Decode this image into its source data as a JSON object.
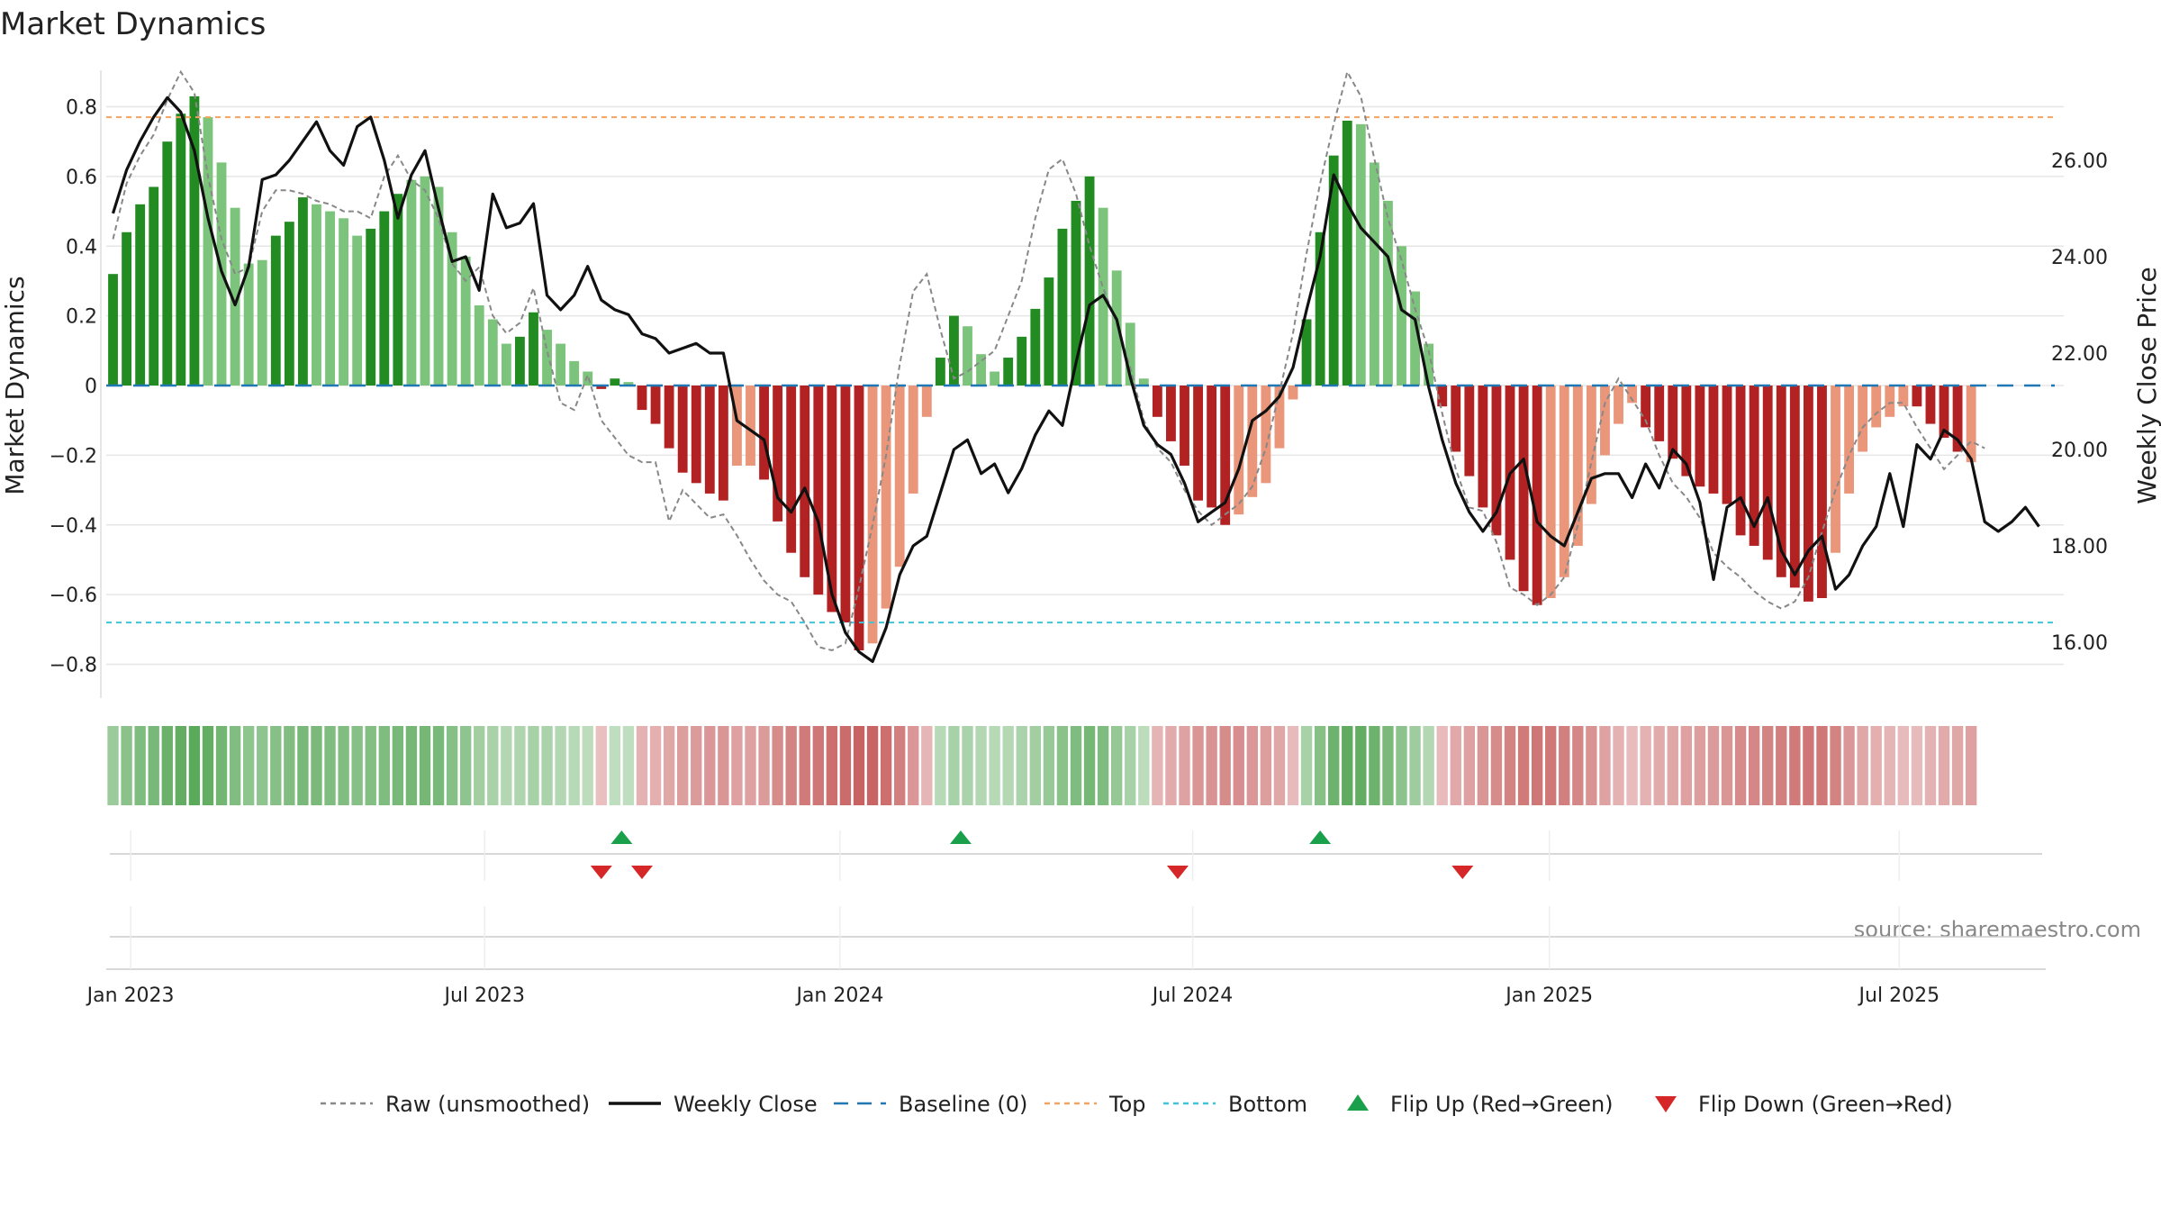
{
  "chart_data": {
    "type": "bar",
    "title": "Market Dynamics",
    "ylabel": "Market Dynamics",
    "ylabel_right": "Weekly Close Price",
    "source": "source: sharemaestro.com",
    "ylim": [
      -0.88,
      0.9
    ],
    "ylim_right": [
      15.0,
      27.8
    ],
    "yticks": [
      {
        "v": 0.8,
        "label": "0.8"
      },
      {
        "v": 0.6,
        "label": "0.6"
      },
      {
        "v": 0.4,
        "label": "0.4"
      },
      {
        "v": 0.2,
        "label": "0.2"
      },
      {
        "v": 0,
        "label": "0"
      },
      {
        "v": -0.2,
        "label": "−0.2"
      },
      {
        "v": -0.4,
        "label": "−0.4"
      },
      {
        "v": -0.6,
        "label": "−0.6"
      },
      {
        "v": -0.8,
        "label": "−0.8"
      }
    ],
    "yticks_right": [
      {
        "v": 26,
        "label": "26.00"
      },
      {
        "v": 24,
        "label": "24.00"
      },
      {
        "v": 22,
        "label": "22.00"
      },
      {
        "v": 20,
        "label": "20.00"
      },
      {
        "v": 18,
        "label": "18.00"
      },
      {
        "v": 16,
        "label": "16.00"
      }
    ],
    "xticks": [
      {
        "week": 1.3,
        "label": "Jan 2023"
      },
      {
        "week": 27.4,
        "label": "Jul 2023"
      },
      {
        "week": 53.6,
        "label": "Jan 2024"
      },
      {
        "week": 79.6,
        "label": "Jul 2024"
      },
      {
        "week": 105.9,
        "label": "Jan 2025"
      },
      {
        "week": 131.7,
        "label": "Jul 2025"
      }
    ],
    "top_level": 0.77,
    "bottom_level": -0.68,
    "baseline": 0,
    "colors": {
      "strong_up": "#228B22",
      "weak_up": "#7CC47C",
      "strong_down": "#B22222",
      "weak_down": "#E9967A",
      "raw": "#888888",
      "close": "#111111",
      "baseline": "#1f77b4",
      "top": "#F4A460",
      "bottom": "#40C4D8",
      "flip_up": "#1AA04A",
      "flip_down": "#D62728"
    },
    "weeks": [
      0,
      1,
      2,
      3,
      4,
      5,
      6,
      7,
      8,
      9,
      10,
      11,
      12,
      13,
      14,
      15,
      16,
      17,
      18,
      19,
      20,
      21,
      22,
      23,
      24,
      25,
      26,
      27,
      28,
      29,
      30,
      31,
      32,
      33,
      34,
      35,
      36,
      37,
      38,
      39,
      40,
      41,
      42,
      43,
      44,
      45,
      46,
      47,
      48,
      49,
      50,
      51,
      52,
      53,
      54,
      55,
      56,
      57,
      58,
      59,
      60,
      61,
      62,
      63,
      64,
      65,
      66,
      67,
      68,
      69,
      70,
      71,
      72,
      73,
      74,
      75,
      76,
      77,
      78,
      79,
      80,
      81,
      82,
      83,
      84,
      85,
      86,
      87,
      88,
      89,
      90,
      91,
      92,
      93,
      94,
      95,
      96,
      97,
      98,
      99,
      100,
      101,
      102,
      103,
      104,
      105,
      106,
      107,
      108,
      109,
      110,
      111,
      112,
      113,
      114,
      115,
      116,
      117,
      118,
      119,
      120,
      121,
      122,
      123,
      124,
      125,
      126,
      127,
      128,
      129,
      130,
      131,
      132,
      133,
      134,
      135,
      136,
      137,
      138,
      139,
      140,
      141,
      142
    ],
    "series": [
      {
        "name": "Market Dynamics",
        "values": [
          0.32,
          0.44,
          0.52,
          0.57,
          0.7,
          0.78,
          0.83,
          0.77,
          0.64,
          0.51,
          0.35,
          0.36,
          0.43,
          0.47,
          0.54,
          0.52,
          0.5,
          0.48,
          0.43,
          0.45,
          0.5,
          0.55,
          0.59,
          0.6,
          0.57,
          0.44,
          0.37,
          0.23,
          0.19,
          0.12,
          0.14,
          0.21,
          0.16,
          0.12,
          0.07,
          0.04,
          -0.01,
          0.02,
          0.01,
          -0.07,
          -0.11,
          -0.18,
          -0.25,
          -0.28,
          -0.31,
          -0.33,
          -0.23,
          -0.23,
          -0.27,
          -0.39,
          -0.48,
          -0.55,
          -0.6,
          -0.65,
          -0.68,
          -0.76,
          -0.74,
          -0.64,
          -0.52,
          -0.31,
          -0.09,
          0.08,
          0.2,
          0.17,
          0.09,
          0.04,
          0.08,
          0.14,
          0.22,
          0.31,
          0.45,
          0.53,
          0.6,
          0.51,
          0.33,
          0.18,
          0.02,
          -0.09,
          -0.16,
          -0.23,
          -0.33,
          -0.35,
          -0.4,
          -0.37,
          -0.32,
          -0.28,
          -0.18,
          -0.04,
          0.19,
          0.44,
          0.66,
          0.76,
          0.75,
          0.64,
          0.53,
          0.4,
          0.27,
          0.12,
          -0.06,
          -0.19,
          -0.26,
          -0.35,
          -0.43,
          -0.5,
          -0.59,
          -0.63,
          -0.61,
          -0.55,
          -0.46,
          -0.34,
          -0.2,
          -0.11,
          -0.05,
          -0.12,
          -0.16,
          -0.21,
          -0.26,
          -0.29,
          -0.31,
          -0.34,
          -0.43,
          -0.46,
          -0.5,
          -0.55,
          -0.58,
          -0.62,
          -0.61,
          -0.48,
          -0.31,
          -0.19,
          -0.12,
          -0.09,
          -0.06,
          -0.06,
          -0.11,
          -0.15,
          -0.19,
          -0.22
        ],
        "mode": [
          "S",
          "S",
          "S",
          "S",
          "S",
          "S",
          "S",
          "W",
          "W",
          "W",
          "W",
          "W",
          "S",
          "S",
          "S",
          "W",
          "W",
          "W",
          "W",
          "S",
          "S",
          "S",
          "W",
          "W",
          "W",
          "W",
          "W",
          "W",
          "W",
          "W",
          "S",
          "S",
          "W",
          "W",
          "W",
          "W",
          "S",
          "S",
          "W",
          "S",
          "S",
          "S",
          "S",
          "S",
          "S",
          "S",
          "W",
          "W",
          "S",
          "S",
          "S",
          "S",
          "S",
          "S",
          "S",
          "S",
          "W",
          "W",
          "W",
          "W",
          "W",
          "S",
          "S",
          "W",
          "W",
          "W",
          "S",
          "S",
          "S",
          "S",
          "S",
          "S",
          "S",
          "W",
          "W",
          "W",
          "W",
          "S",
          "S",
          "S",
          "S",
          "S",
          "S",
          "W",
          "W",
          "W",
          "W",
          "W",
          "S",
          "S",
          "S",
          "S",
          "W",
          "W",
          "W",
          "W",
          "W",
          "W",
          "S",
          "S",
          "S",
          "S",
          "S",
          "S",
          "S",
          "S",
          "W",
          "W",
          "W",
          "W",
          "W",
          "W",
          "W",
          "S",
          "S",
          "S",
          "S",
          "S",
          "S",
          "S",
          "S",
          "S",
          "S",
          "S",
          "S",
          "S",
          "S",
          "W",
          "W",
          "W",
          "W",
          "W",
          "W",
          "S",
          "S",
          "S",
          "S"
        ]
      },
      {
        "name": "Raw (unsmoothed)",
        "values": [
          0.42,
          0.58,
          0.66,
          0.72,
          0.82,
          0.9,
          0.84,
          0.6,
          0.42,
          0.32,
          0.34,
          0.5,
          0.56,
          0.56,
          0.55,
          0.53,
          0.52,
          0.5,
          0.5,
          0.48,
          0.6,
          0.66,
          0.59,
          0.56,
          0.48,
          0.35,
          0.3,
          0.34,
          0.2,
          0.15,
          0.18,
          0.28,
          0.1,
          -0.05,
          -0.07,
          0.03,
          -0.1,
          -0.15,
          -0.2,
          -0.22,
          -0.22,
          -0.39,
          -0.3,
          -0.34,
          -0.38,
          -0.37,
          -0.43,
          -0.5,
          -0.56,
          -0.6,
          -0.62,
          -0.68,
          -0.75,
          -0.76,
          -0.74,
          -0.58,
          -0.4,
          -0.2,
          0.06,
          0.27,
          0.32,
          0.16,
          0.02,
          0.04,
          0.07,
          0.1,
          0.2,
          0.3,
          0.48,
          0.62,
          0.65,
          0.55,
          0.4,
          0.28,
          0.18,
          0.05,
          -0.1,
          -0.18,
          -0.22,
          -0.3,
          -0.36,
          -0.4,
          -0.37,
          -0.34,
          -0.29,
          -0.18,
          -0.02,
          0.15,
          0.38,
          0.58,
          0.75,
          0.9,
          0.83,
          0.65,
          0.48,
          0.36,
          0.22,
          0.1,
          -0.08,
          -0.24,
          -0.35,
          -0.36,
          -0.45,
          -0.58,
          -0.6,
          -0.63,
          -0.6,
          -0.55,
          -0.4,
          -0.22,
          -0.05,
          0.02,
          -0.04,
          -0.1,
          -0.2,
          -0.28,
          -0.32,
          -0.38,
          -0.48,
          -0.52,
          -0.55,
          -0.59,
          -0.62,
          -0.64,
          -0.62,
          -0.55,
          -0.42,
          -0.3,
          -0.2,
          -0.12,
          -0.08,
          -0.05,
          -0.05,
          -0.12,
          -0.18,
          -0.24,
          -0.2,
          -0.16,
          -0.18
        ]
      },
      {
        "name": "Weekly Close",
        "values": [
          24.9,
          25.8,
          26.4,
          26.9,
          27.3,
          27.0,
          26.2,
          24.8,
          23.7,
          23.0,
          23.8,
          25.6,
          25.7,
          26.0,
          26.4,
          26.8,
          26.2,
          25.9,
          26.7,
          26.9,
          26.0,
          24.8,
          25.7,
          26.2,
          25.0,
          23.9,
          24.0,
          23.3,
          25.3,
          24.6,
          24.7,
          25.1,
          23.2,
          22.9,
          23.2,
          23.8,
          23.1,
          22.9,
          22.8,
          22.4,
          22.3,
          22.0,
          22.1,
          22.2,
          22.0,
          22.0,
          20.6,
          20.4,
          20.2,
          19.0,
          18.7,
          19.2,
          18.5,
          17.0,
          16.2,
          15.8,
          15.6,
          16.3,
          17.4,
          18.0,
          18.2,
          19.1,
          20.0,
          20.2,
          19.5,
          19.7,
          19.1,
          19.6,
          20.3,
          20.8,
          20.5,
          21.8,
          23.0,
          23.2,
          22.7,
          21.5,
          20.5,
          20.1,
          19.9,
          19.3,
          18.5,
          18.7,
          18.9,
          19.6,
          20.6,
          20.8,
          21.1,
          21.7,
          22.9,
          24.0,
          25.7,
          25.1,
          24.6,
          24.3,
          24.0,
          22.9,
          22.7,
          21.3,
          20.2,
          19.3,
          18.7,
          18.3,
          18.7,
          19.5,
          19.8,
          18.5,
          18.2,
          18.0,
          18.7,
          19.4,
          19.5,
          19.5,
          19.0,
          19.7,
          19.2,
          20.0,
          19.7,
          18.9,
          17.3,
          18.8,
          19.0,
          18.4,
          19.0,
          17.9,
          17.4,
          17.9,
          18.2,
          17.1,
          17.4,
          18.0,
          18.4,
          19.5,
          18.4,
          20.1,
          19.8,
          20.4,
          20.2,
          19.8,
          18.5,
          18.3,
          18.5,
          18.8,
          18.4
        ],
        "close_scale": [
          15.0,
          27.8
        ]
      }
    ],
    "regime_strip": {
      "levels": [
        0.46,
        0.58,
        0.66,
        0.7,
        0.8,
        0.86,
        0.9,
        0.84,
        0.74,
        0.64,
        0.54,
        0.54,
        0.6,
        0.64,
        0.7,
        0.68,
        0.66,
        0.64,
        0.6,
        0.62,
        0.66,
        0.7,
        0.72,
        0.72,
        0.7,
        0.6,
        0.54,
        0.4,
        0.36,
        0.3,
        0.32,
        0.38,
        0.34,
        0.3,
        0.26,
        0.22,
        -0.2,
        0.2,
        0.2,
        -0.3,
        -0.32,
        -0.38,
        -0.44,
        -0.46,
        -0.48,
        -0.5,
        -0.42,
        -0.42,
        -0.46,
        -0.56,
        -0.62,
        -0.68,
        -0.72,
        -0.76,
        -0.8,
        -0.86,
        -0.84,
        -0.76,
        -0.66,
        -0.48,
        -0.26,
        0.26,
        0.38,
        0.34,
        0.3,
        0.26,
        0.28,
        0.34,
        0.4,
        0.48,
        0.58,
        0.66,
        0.72,
        0.66,
        0.5,
        0.38,
        0.22,
        -0.28,
        -0.34,
        -0.4,
        -0.5,
        -0.52,
        -0.56,
        -0.54,
        -0.48,
        -0.44,
        -0.38,
        -0.24,
        0.38,
        0.6,
        0.78,
        0.88,
        0.86,
        0.78,
        0.68,
        0.56,
        0.44,
        0.3,
        -0.24,
        -0.36,
        -0.42,
        -0.5,
        -0.56,
        -0.62,
        -0.68,
        -0.72,
        -0.7,
        -0.66,
        -0.6,
        -0.52,
        -0.4,
        -0.3,
        -0.22,
        -0.3,
        -0.34,
        -0.38,
        -0.42,
        -0.44,
        -0.46,
        -0.5,
        -0.58,
        -0.6,
        -0.62,
        -0.66,
        -0.68,
        -0.72,
        -0.7,
        -0.62,
        -0.48,
        -0.38,
        -0.32,
        -0.28,
        -0.24,
        -0.24,
        -0.3,
        -0.34,
        -0.38,
        -0.42
      ]
    },
    "flips": {
      "up_weeks": [
        37.5,
        62.5,
        89.0
      ],
      "down_weeks": [
        36.0,
        39.0,
        78.5,
        99.5
      ]
    },
    "legend": [
      {
        "label": "Raw (unsmoothed)",
        "marker": "dotted-line",
        "color_key": "raw"
      },
      {
        "label": "Weekly Close",
        "marker": "solid-line",
        "color_key": "close"
      },
      {
        "label": "Baseline (0)",
        "marker": "dashed-line",
        "color_key": "baseline"
      },
      {
        "label": "Top",
        "marker": "dotted-line",
        "color_key": "top"
      },
      {
        "label": "Bottom",
        "marker": "dotted-line",
        "color_key": "bottom"
      },
      {
        "label": "Flip Up (Red→Green)",
        "marker": "triangle-up",
        "color_key": "flip_up"
      },
      {
        "label": "Flip Down (Green→Red)",
        "marker": "triangle-down",
        "color_key": "flip_down"
      }
    ]
  }
}
